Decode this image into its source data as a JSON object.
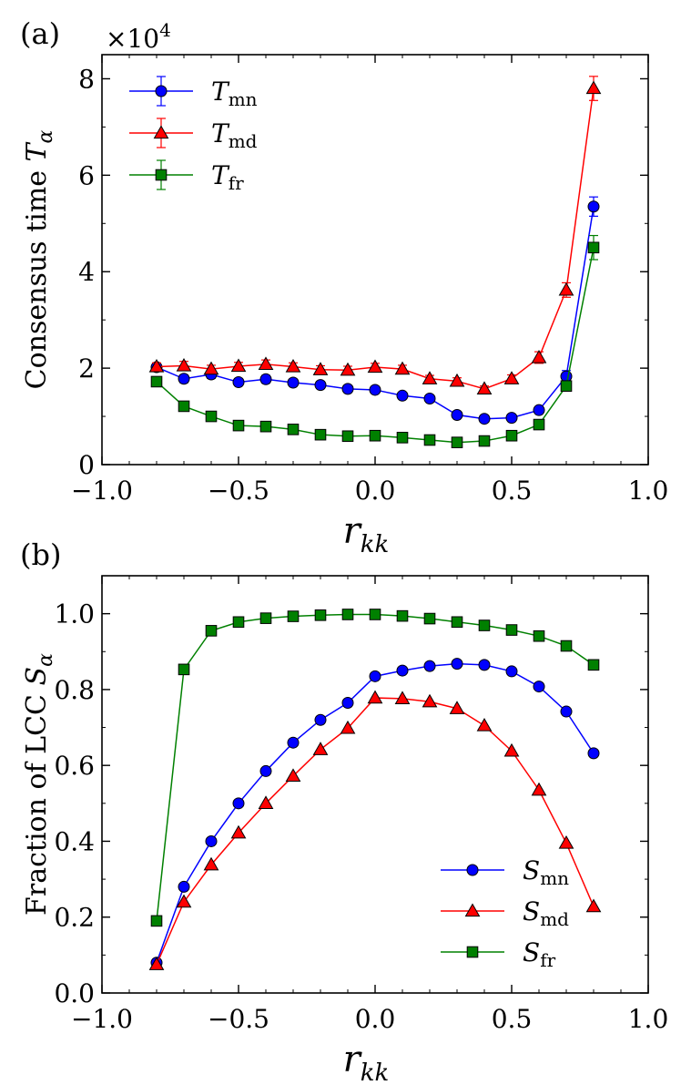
{
  "chart_data": [
    {
      "panel_label": "(a)",
      "type": "line",
      "xlabel_main": "r",
      "xlabel_sub": "kk",
      "ylabel_main": "Consensus time ",
      "ylabel_var": "T",
      "ylabel_sub": "α",
      "multiplier_text": "×10",
      "multiplier_exp": "4",
      "xlim": [
        -1.0,
        1.0
      ],
      "ylim": [
        0,
        8.5
      ],
      "xticks": [
        -1.0,
        -0.5,
        0.0,
        0.5,
        1.0
      ],
      "xtick_labels": [
        "−1.0",
        "−0.5",
        "0.0",
        "0.5",
        "1.0"
      ],
      "yticks": [
        0,
        2,
        4,
        6,
        8
      ],
      "ytick_labels": [
        "0",
        "2",
        "4",
        "6",
        "8"
      ],
      "legend_position": "top-left",
      "x": [
        -0.8,
        -0.7,
        -0.6,
        -0.5,
        -0.4,
        -0.3,
        -0.2,
        -0.1,
        0.0,
        0.1,
        0.2,
        0.3,
        0.4,
        0.5,
        0.6,
        0.7,
        0.8
      ],
      "series": [
        {
          "name": "T",
          "sub": "mn",
          "color": "#0000ff",
          "marker": "circle",
          "values": [
            2.02,
            1.78,
            1.87,
            1.71,
            1.77,
            1.7,
            1.65,
            1.57,
            1.55,
            1.43,
            1.37,
            1.03,
            0.95,
            0.97,
            1.13,
            1.83,
            5.35
          ],
          "errors": [
            0.08,
            0.08,
            0.08,
            0.07,
            0.08,
            0.07,
            0.07,
            0.07,
            0.07,
            0.06,
            0.06,
            0.05,
            0.05,
            0.05,
            0.07,
            0.12,
            0.2
          ]
        },
        {
          "name": "T",
          "sub": "md",
          "color": "#ff0000",
          "marker": "triangle",
          "values": [
            2.03,
            2.05,
            1.98,
            2.04,
            2.08,
            2.03,
            1.97,
            1.96,
            2.02,
            1.98,
            1.78,
            1.73,
            1.57,
            1.78,
            2.22,
            3.62,
            7.8
          ],
          "errors": [
            0.08,
            0.09,
            0.08,
            0.08,
            0.09,
            0.08,
            0.08,
            0.08,
            0.08,
            0.08,
            0.07,
            0.07,
            0.06,
            0.08,
            0.12,
            0.15,
            0.25
          ]
        },
        {
          "name": "T",
          "sub": "fr",
          "color": "#008000",
          "marker": "square",
          "values": [
            1.72,
            1.21,
            1.0,
            0.81,
            0.79,
            0.73,
            0.62,
            0.59,
            0.6,
            0.56,
            0.51,
            0.46,
            0.49,
            0.6,
            0.83,
            1.63,
            4.5
          ],
          "errors": [
            0.06,
            0.05,
            0.05,
            0.04,
            0.04,
            0.04,
            0.03,
            0.03,
            0.03,
            0.03,
            0.03,
            0.03,
            0.03,
            0.04,
            0.05,
            0.1,
            0.25
          ]
        }
      ]
    },
    {
      "panel_label": "(b)",
      "type": "line",
      "xlabel_main": "r",
      "xlabel_sub": "kk",
      "ylabel_main": "Fraction of LCC ",
      "ylabel_var": "S",
      "ylabel_sub": "α",
      "xlim": [
        -1.0,
        1.0
      ],
      "ylim": [
        0,
        1.1
      ],
      "xticks": [
        -1.0,
        -0.5,
        0.0,
        0.5,
        1.0
      ],
      "xtick_labels": [
        "−1.0",
        "−0.5",
        "0.0",
        "0.5",
        "1.0"
      ],
      "yticks": [
        0.0,
        0.2,
        0.4,
        0.6,
        0.8,
        1.0
      ],
      "ytick_labels": [
        "0.0",
        "0.2",
        "0.4",
        "0.6",
        "0.8",
        "1.0"
      ],
      "legend_position": "bottom-right",
      "x": [
        -0.8,
        -0.7,
        -0.6,
        -0.5,
        -0.4,
        -0.3,
        -0.2,
        -0.1,
        0.0,
        0.1,
        0.2,
        0.3,
        0.4,
        0.5,
        0.6,
        0.7,
        0.8
      ],
      "series": [
        {
          "name": "S",
          "sub": "mn",
          "color": "#0000ff",
          "marker": "circle",
          "values": [
            0.08,
            0.28,
            0.4,
            0.5,
            0.585,
            0.66,
            0.72,
            0.765,
            0.835,
            0.85,
            0.862,
            0.868,
            0.865,
            0.848,
            0.808,
            0.742,
            0.632
          ]
        },
        {
          "name": "S",
          "sub": "md",
          "color": "#ff0000",
          "marker": "triangle",
          "values": [
            0.075,
            0.24,
            0.338,
            0.422,
            0.5,
            0.572,
            0.642,
            0.698,
            0.778,
            0.776,
            0.768,
            0.75,
            0.705,
            0.638,
            0.535,
            0.395,
            0.228
          ]
        },
        {
          "name": "S",
          "sub": "fr",
          "color": "#008000",
          "marker": "square",
          "values": [
            0.19,
            0.853,
            0.955,
            0.978,
            0.988,
            0.993,
            0.996,
            0.998,
            0.998,
            0.994,
            0.987,
            0.978,
            0.969,
            0.957,
            0.941,
            0.915,
            0.865
          ]
        }
      ]
    }
  ]
}
